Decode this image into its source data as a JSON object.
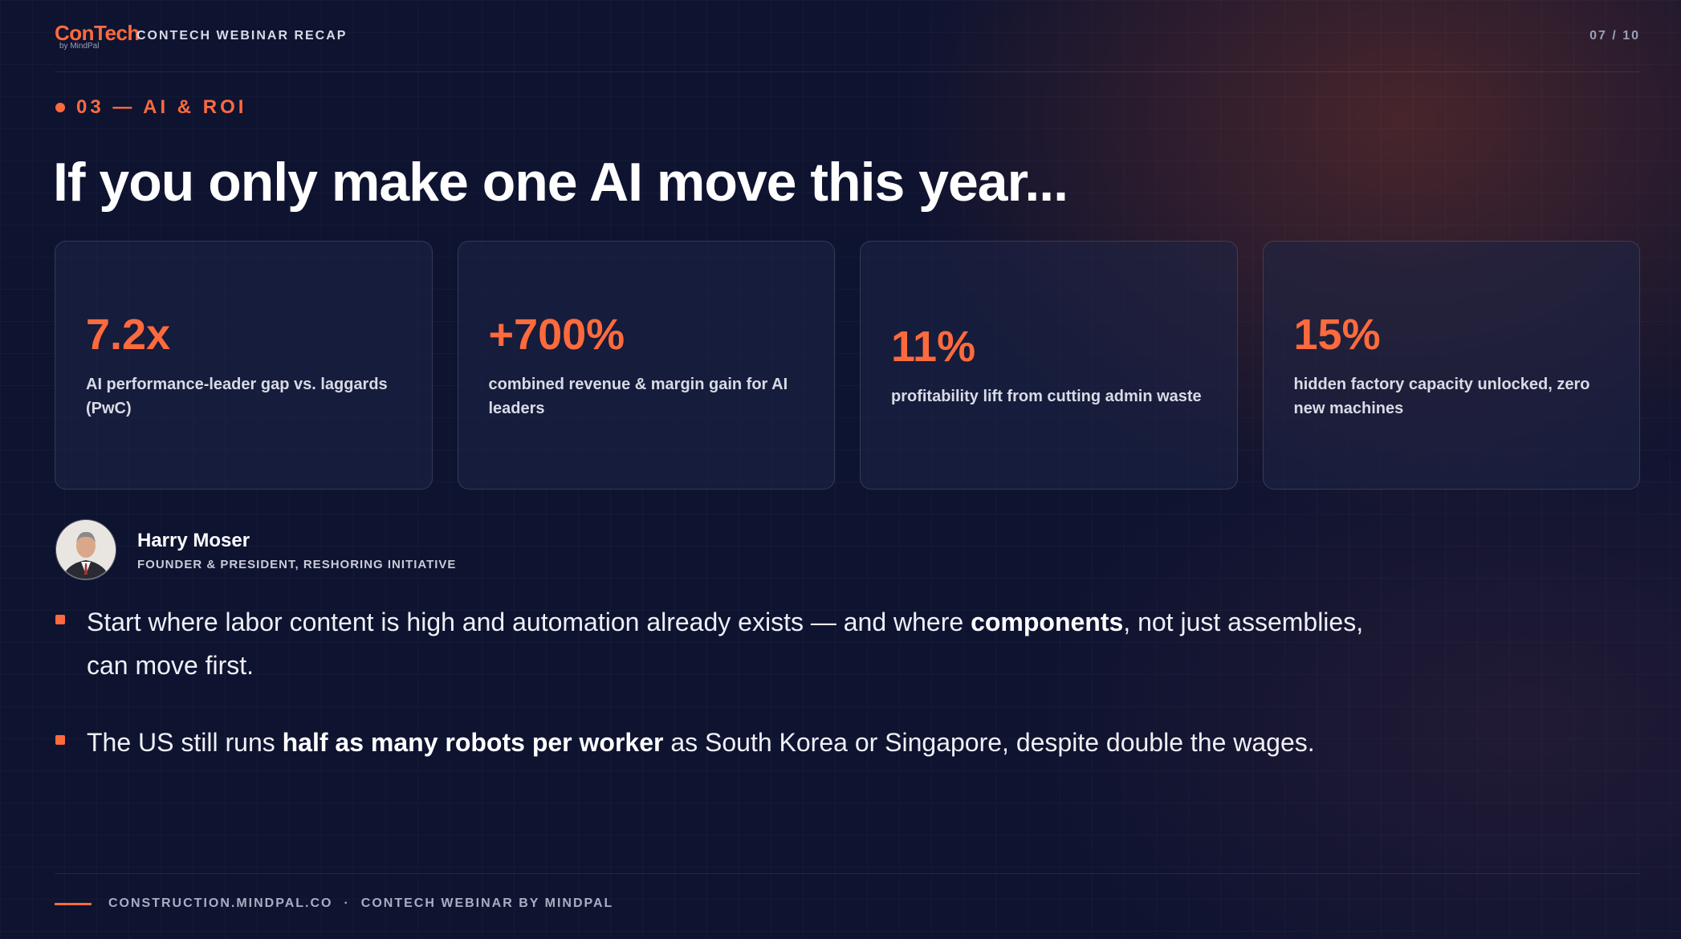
{
  "header": {
    "logo": "ConTech",
    "logo_sub": "by MindPal",
    "title": "CONTECH WEBINAR RECAP",
    "page": "07 / 10"
  },
  "section": "03 — AI & ROI",
  "title": "If you only make one AI move this year...",
  "stats": [
    {
      "value": "7.2x",
      "label": "AI performance-leader gap vs. laggards (PwC)"
    },
    {
      "value": "+700%",
      "label": "combined revenue & margin gain for AI leaders"
    },
    {
      "value": "11%",
      "label": "profitability lift from cutting admin waste"
    },
    {
      "value": "15%",
      "label": "hidden factory capacity unlocked, zero new machines"
    }
  ],
  "speaker": {
    "name": "Harry Moser",
    "role": "FOUNDER & PRESIDENT, RESHORING INITIATIVE"
  },
  "bullets": [
    [
      {
        "text": "Start where labor content is high and automation already exists — and where ",
        "strong": false
      },
      {
        "text": "components",
        "strong": true
      },
      {
        "text": ", not just assemblies, can move first.",
        "strong": false
      }
    ],
    [
      {
        "text": "The US still runs ",
        "strong": false
      },
      {
        "text": "half as many robots per worker",
        "strong": true
      },
      {
        "text": " as South Korea or Singapore, despite double the wages.",
        "strong": false
      }
    ]
  ],
  "footer": {
    "site": "CONSTRUCTION.MINDPAL.CO",
    "separator": "·",
    "credit": "CONTECH WEBINAR BY MINDPAL"
  }
}
